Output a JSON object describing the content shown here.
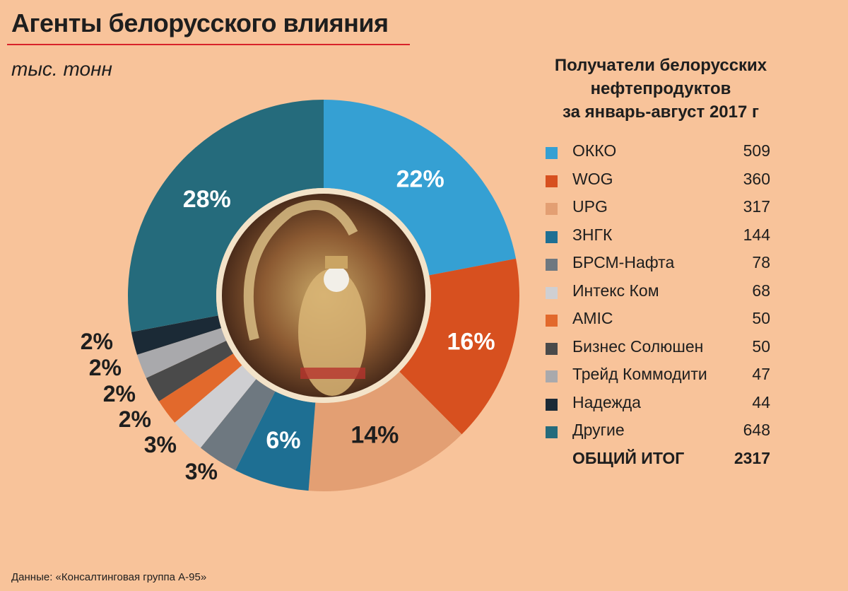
{
  "header": {
    "title": "Агенты белорусского влияния",
    "unit": "тыс. тонн"
  },
  "chart_data": {
    "type": "pie",
    "donut": true,
    "title": "Получатели белорусских нефтепродуктов за январь-август 2017 г",
    "title_lines": [
      "Получатели белорусских",
      "нефтепродуктов",
      "за январь-август 2017 г"
    ],
    "unit": "тыс. тонн",
    "legend_position": "right",
    "slices": [
      {
        "name": "ОККО",
        "value": 509,
        "pct_label": "22%",
        "color": "#35a0d3"
      },
      {
        "name": "WOG",
        "value": 360,
        "pct_label": "16%",
        "color": "#d7501f"
      },
      {
        "name": "UPG",
        "value": 317,
        "pct_label": "14%",
        "color": "#e39f73"
      },
      {
        "name": "ЗНГК",
        "value": 144,
        "pct_label": "6%",
        "color": "#1e6f93"
      },
      {
        "name": "БРСМ-Нафта",
        "value": 78,
        "pct_label": "3%",
        "color": "#6e7880"
      },
      {
        "name": "Интекс Ком",
        "value": 68,
        "pct_label": "3%",
        "color": "#cfcfd2"
      },
      {
        "name": "AMIC",
        "value": 50,
        "pct_label": "2%",
        "color": "#e2692c"
      },
      {
        "name": "Бизнес Солюшен",
        "value": 50,
        "pct_label": "2%",
        "color": "#4a4a4a"
      },
      {
        "name": "Трейд Коммодити",
        "value": 47,
        "pct_label": "2%",
        "color": "#a9a9ac"
      },
      {
        "name": "Надежда",
        "value": 44,
        "pct_label": "2%",
        "color": "#1b2a36"
      },
      {
        "name": "Другие",
        "value": 648,
        "pct_label": "28%",
        "color": "#256b7c"
      }
    ],
    "total_label": "ОБЩИЙ ИТОГ",
    "total_value": 2317
  },
  "source": "Данные: «Консалтинговая группа А-95»"
}
